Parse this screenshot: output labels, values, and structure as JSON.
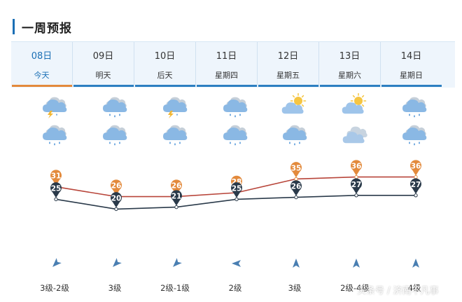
{
  "page": {
    "title": "一周预报"
  },
  "days": [
    {
      "date": "08日",
      "label": "今天",
      "active": true,
      "day_weather": "thunderstorm",
      "night_weather": "rain",
      "high": 31,
      "low": 25,
      "wind_level": "3级-2级",
      "wind_dir": "northeast"
    },
    {
      "date": "09日",
      "label": "明天",
      "active": false,
      "day_weather": "rain",
      "night_weather": "rain",
      "high": 26,
      "low": 20,
      "wind_level": "3级",
      "wind_dir": "northeast"
    },
    {
      "date": "10日",
      "label": "后天",
      "active": false,
      "day_weather": "thunderstorm",
      "night_weather": "rain",
      "high": 26,
      "low": 21,
      "wind_level": "2级-1级",
      "wind_dir": "northeast"
    },
    {
      "date": "11日",
      "label": "星期四",
      "active": false,
      "day_weather": "rain",
      "night_weather": "rain",
      "high": 28,
      "low": 25,
      "wind_level": "2级",
      "wind_dir": "east"
    },
    {
      "date": "12日",
      "label": "星期五",
      "active": false,
      "day_weather": "partly-cloudy",
      "night_weather": "rain",
      "high": 35,
      "low": 26,
      "wind_level": "3级",
      "wind_dir": "south"
    },
    {
      "date": "13日",
      "label": "星期六",
      "active": false,
      "day_weather": "partly-cloudy",
      "night_weather": "cloudy",
      "high": 36,
      "low": 27,
      "wind_level": "2级-4级",
      "wind_dir": "south"
    },
    {
      "date": "14日",
      "label": "星期日",
      "active": false,
      "day_weather": "rain",
      "night_weather": "rain",
      "high": 36,
      "low": 27,
      "wind_level": "4级",
      "wind_dir": "south"
    }
  ],
  "chart_data": {
    "type": "line",
    "categories": [
      "08日",
      "09日",
      "10日",
      "11日",
      "12日",
      "13日",
      "14日"
    ],
    "series": [
      {
        "values": [
          31,
          26,
          26,
          28,
          35,
          36,
          36
        ],
        "color": "#e38a3c"
      },
      {
        "values": [
          25,
          20,
          21,
          25,
          26,
          27,
          27
        ],
        "color": "#2a3a4a"
      }
    ]
  },
  "colors": {
    "accent": "#1a6fb5",
    "active_tab": "#e38a3c",
    "high_line": "#b8453a",
    "low_line": "#2a3a4a"
  },
  "watermark": "头条号 / 济南不凡事"
}
